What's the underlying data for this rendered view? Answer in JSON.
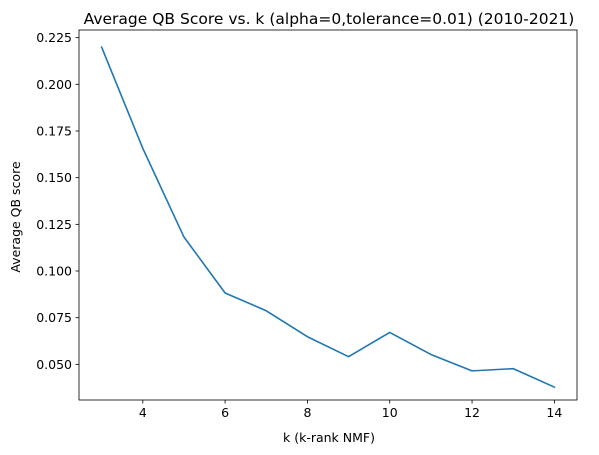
{
  "chart_data": {
    "type": "line",
    "title": "Average QB Score vs. k (alpha=0,tolerance=0.01) (2010-2021)",
    "xlabel": "k (k-rank NMF)",
    "ylabel": "Average QB score",
    "xlim": [
      2.45,
      14.55
    ],
    "ylim": [
      0.0309,
      0.2291
    ],
    "x_ticks": [
      4,
      6,
      8,
      10,
      12,
      14
    ],
    "x_tick_labels": [
      "4",
      "6",
      "8",
      "10",
      "12",
      "14"
    ],
    "y_ticks": [
      0.05,
      0.075,
      0.1,
      0.125,
      0.15,
      0.175,
      0.2,
      0.225
    ],
    "y_tick_labels": [
      "0.050",
      "0.075",
      "0.100",
      "0.125",
      "0.150",
      "0.175",
      "0.200",
      "0.225"
    ],
    "grid": false,
    "series": [
      {
        "color": "#1f77b4",
        "x": [
          3,
          4,
          5,
          6,
          7,
          8,
          9,
          10,
          11,
          12,
          13,
          14
        ],
        "y": [
          0.2199,
          0.1657,
          0.1182,
          0.0882,
          0.0787,
          0.0648,
          0.0541,
          0.0671,
          0.0553,
          0.0465,
          0.0477,
          0.0378
        ]
      }
    ]
  }
}
